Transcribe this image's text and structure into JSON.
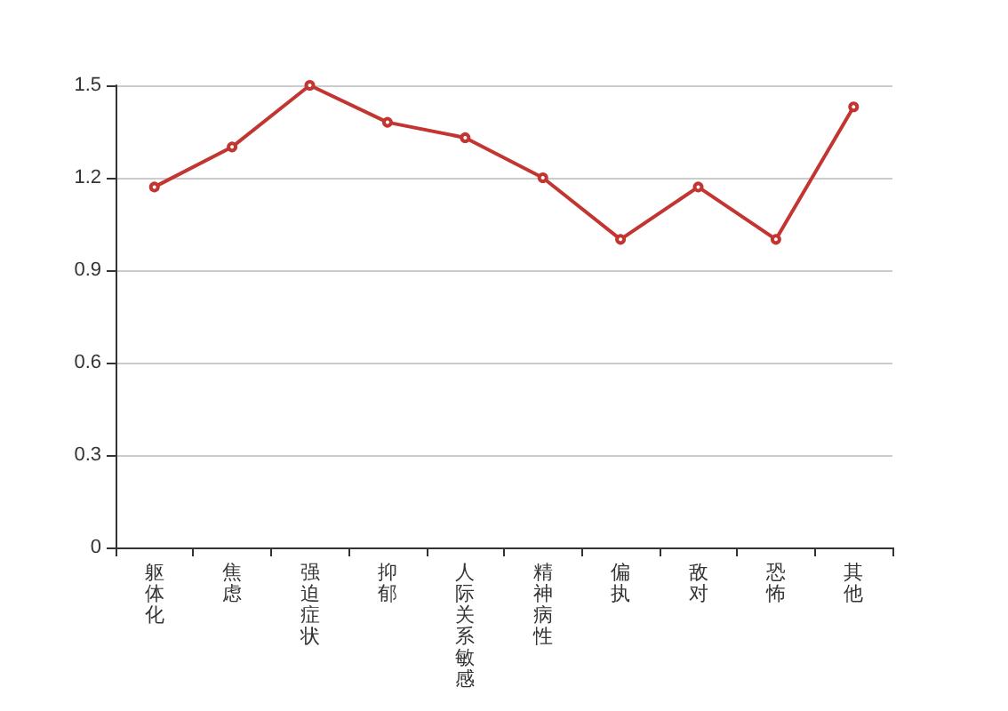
{
  "chart_data": {
    "type": "line",
    "categories": [
      "躯体化",
      "焦虑",
      "强迫症状",
      "抑郁",
      "人际关系敏感",
      "精神病性",
      "偏执",
      "敌对",
      "恐怖",
      "其他"
    ],
    "series": [
      {
        "color": "#c23531",
        "values": [
          1.17,
          1.3,
          1.5,
          1.38,
          1.33,
          1.2,
          1.0,
          1.17,
          1.0,
          1.43
        ]
      }
    ],
    "ylim": [
      0,
      1.5
    ],
    "yticks": [
      0,
      0.3,
      0.6,
      0.9,
      1.2,
      1.5
    ],
    "grid": "y",
    "marker": "circle",
    "line_style": "solid"
  }
}
